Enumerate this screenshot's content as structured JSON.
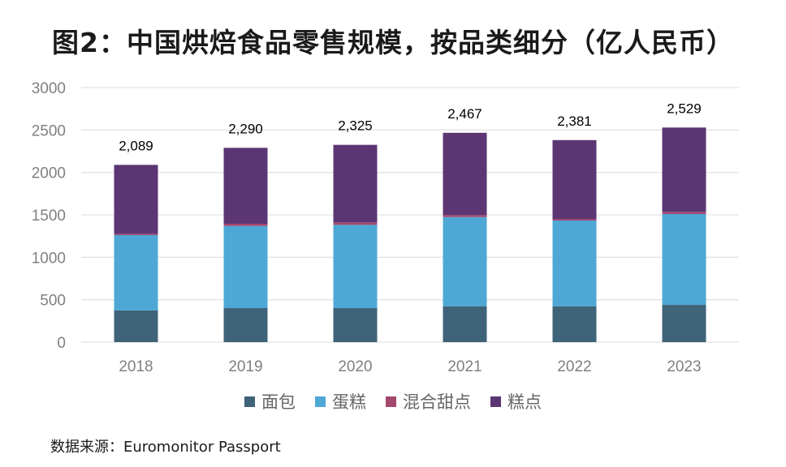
{
  "title": "图2：中国烘焙食品零售规模，按品类细分（亿人民币）",
  "source": "数据来源：Euromonitor Passport",
  "chart_data": {
    "type": "bar",
    "stacked": true,
    "title": "图2：中国烘焙食品零售规模，按品类细分（亿人民币）",
    "xlabel": "",
    "ylabel": "",
    "categories": [
      "2018",
      "2019",
      "2020",
      "2021",
      "2022",
      "2023"
    ],
    "series": [
      {
        "name": "面包",
        "color": "#3F6379",
        "values": [
          375,
          401,
          401,
          423,
          423,
          439
        ]
      },
      {
        "name": "蛋糕",
        "color": "#4EA8D6",
        "values": [
          886,
          968,
          981,
          1051,
          1010,
          1070
        ]
      },
      {
        "name": "混合甜点",
        "color": "#A3486F",
        "values": [
          16,
          26,
          29,
          23,
          19,
          26
        ]
      },
      {
        "name": "糕点",
        "color": "#5C3673",
        "values": [
          812,
          895,
          914,
          970,
          929,
          994
        ]
      }
    ],
    "totals": [
      2089,
      2290,
      2325,
      2467,
      2381,
      2529
    ],
    "total_labels": [
      "2,089",
      "2,290",
      "2,325",
      "2,467",
      "2,381",
      "2,529"
    ],
    "ylim": [
      0,
      3000
    ],
    "yticks": [
      0,
      500,
      1000,
      1500,
      2000,
      2500,
      3000
    ],
    "grid": true,
    "legend_position": "bottom"
  }
}
